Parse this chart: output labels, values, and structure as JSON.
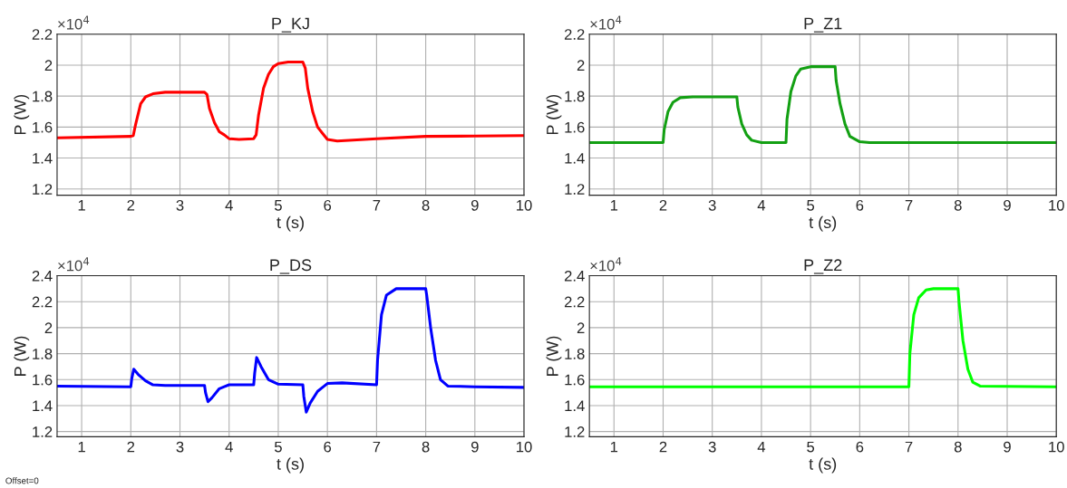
{
  "chart_data": [
    {
      "type": "line",
      "title": "P_KJ",
      "xlabel": "t (s)",
      "ylabel": "P (W)",
      "annotations": [
        "×10$^{4}$"
      ],
      "xlim": [
        0.5,
        10
      ],
      "xticks": [
        1,
        2,
        3,
        4,
        5,
        6,
        7,
        8,
        9,
        10
      ],
      "ylim": [
        1.16,
        2.2
      ],
      "yticks": [
        1.2,
        1.4,
        1.6,
        1.8,
        2,
        2.2
      ],
      "grid": true,
      "series": [
        {
          "color": "#ff0000",
          "x": [
            0.5,
            2.0,
            2.05,
            2.1,
            2.2,
            2.3,
            2.45,
            2.7,
            3.5,
            3.55,
            3.6,
            3.7,
            3.8,
            3.9,
            4.0,
            4.2,
            4.5,
            4.55,
            4.6,
            4.7,
            4.8,
            4.9,
            5.0,
            5.2,
            5.5,
            5.55,
            5.6,
            5.7,
            5.8,
            5.9,
            6.0,
            6.2,
            7,
            8,
            9,
            10
          ],
          "values": [
            1.53,
            1.54,
            1.545,
            1.62,
            1.75,
            1.795,
            1.815,
            1.825,
            1.825,
            1.81,
            1.72,
            1.63,
            1.57,
            1.55,
            1.525,
            1.52,
            1.525,
            1.55,
            1.68,
            1.85,
            1.94,
            1.99,
            2.01,
            2.02,
            2.02,
            1.98,
            1.85,
            1.7,
            1.6,
            1.56,
            1.52,
            1.51,
            1.525,
            1.54,
            1.542,
            1.545
          ]
        }
      ]
    },
    {
      "type": "line",
      "title": "P_Z1",
      "xlabel": "t (s)",
      "ylabel": "P (W)",
      "annotations": [
        "×10$^{4}$"
      ],
      "xlim": [
        0.5,
        10
      ],
      "xticks": [
        1,
        2,
        3,
        4,
        5,
        6,
        7,
        8,
        9,
        10
      ],
      "ylim": [
        1.16,
        2.2
      ],
      "yticks": [
        1.2,
        1.4,
        1.6,
        1.8,
        2,
        2.2
      ],
      "grid": true,
      "series": [
        {
          "color": "#13a013",
          "x": [
            0.5,
            2.0,
            2.02,
            2.1,
            2.2,
            2.35,
            2.6,
            3.5,
            3.52,
            3.6,
            3.7,
            3.8,
            4.0,
            4.5,
            4.52,
            4.6,
            4.7,
            4.8,
            5.0,
            5.5,
            5.52,
            5.6,
            5.7,
            5.8,
            6.0,
            6.2,
            10
          ],
          "values": [
            1.5,
            1.5,
            1.58,
            1.7,
            1.76,
            1.79,
            1.795,
            1.795,
            1.73,
            1.62,
            1.55,
            1.515,
            1.5,
            1.5,
            1.65,
            1.83,
            1.93,
            1.975,
            1.99,
            1.99,
            1.9,
            1.75,
            1.62,
            1.54,
            1.505,
            1.5,
            1.5
          ]
        }
      ]
    },
    {
      "type": "line",
      "title": "P_DS",
      "xlabel": "t (s)",
      "ylabel": "P (W)",
      "annotations": [
        "×10$^{4}$",
        "Offset=0"
      ],
      "xlim": [
        0.5,
        10
      ],
      "xticks": [
        1,
        2,
        3,
        4,
        5,
        6,
        7,
        8,
        9,
        10
      ],
      "ylim": [
        1.16,
        2.4
      ],
      "yticks": [
        1.2,
        1.4,
        1.6,
        1.8,
        2,
        2.2,
        2.4
      ],
      "grid": true,
      "series": [
        {
          "color": "#0000ff",
          "x": [
            0.5,
            2.0,
            2.02,
            2.06,
            2.15,
            2.3,
            2.45,
            2.7,
            3.5,
            3.52,
            3.57,
            3.65,
            3.8,
            3.9,
            4.0,
            4.5,
            4.52,
            4.56,
            4.65,
            4.8,
            5.0,
            5.5,
            5.52,
            5.57,
            5.65,
            5.8,
            5.9,
            6.0,
            6.3,
            7.0,
            7.02,
            7.1,
            7.2,
            7.4,
            8.0,
            8.02,
            8.1,
            8.2,
            8.3,
            8.45,
            9,
            10
          ],
          "values": [
            1.55,
            1.545,
            1.61,
            1.68,
            1.64,
            1.59,
            1.56,
            1.555,
            1.555,
            1.5,
            1.43,
            1.46,
            1.53,
            1.545,
            1.56,
            1.56,
            1.65,
            1.77,
            1.7,
            1.6,
            1.565,
            1.56,
            1.47,
            1.35,
            1.42,
            1.51,
            1.54,
            1.57,
            1.575,
            1.56,
            1.75,
            2.1,
            2.25,
            2.3,
            2.3,
            2.25,
            2.0,
            1.75,
            1.6,
            1.55,
            1.545,
            1.54
          ]
        }
      ]
    },
    {
      "type": "line",
      "title": "P_Z2",
      "xlabel": "t (s)",
      "ylabel": "P (W)",
      "annotations": [
        "×10$^{4}$"
      ],
      "xlim": [
        0.5,
        10
      ],
      "xticks": [
        1,
        2,
        3,
        4,
        5,
        6,
        7,
        8,
        9,
        10
      ],
      "ylim": [
        1.16,
        2.4
      ],
      "yticks": [
        1.2,
        1.4,
        1.6,
        1.8,
        2,
        2.2,
        2.4
      ],
      "grid": true,
      "series": [
        {
          "color": "#00ff00",
          "x": [
            0.5,
            7.0,
            7.02,
            7.1,
            7.2,
            7.35,
            7.5,
            8.0,
            8.02,
            8.1,
            8.2,
            8.3,
            8.45,
            10
          ],
          "values": [
            1.545,
            1.545,
            1.8,
            2.1,
            2.23,
            2.29,
            2.3,
            2.3,
            2.2,
            1.9,
            1.68,
            1.58,
            1.55,
            1.545
          ]
        }
      ]
    }
  ]
}
